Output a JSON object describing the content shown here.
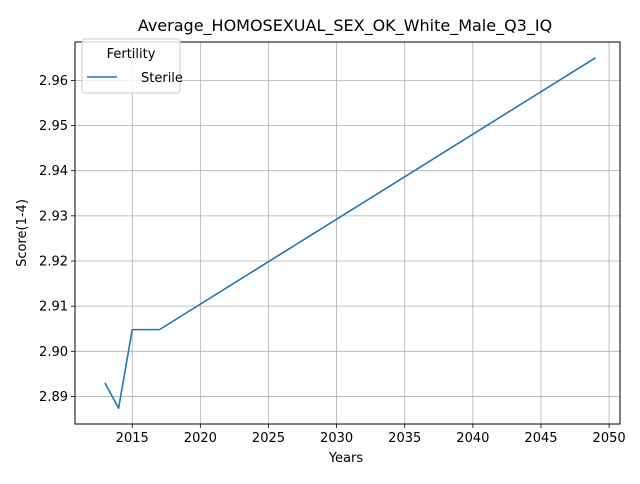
{
  "chart_data": {
    "type": "line",
    "title": "Average_HOMOSEXUAL_SEX_OK_White_Male_Q3_IQ",
    "xlabel": "Years",
    "ylabel": "Score(1-4)",
    "xlim": [
      2010.8,
      2050.8
    ],
    "ylim": [
      2.8839,
      2.9685
    ],
    "x_ticks": [
      2015,
      2020,
      2025,
      2030,
      2035,
      2040,
      2045,
      2050
    ],
    "y_ticks": [
      2.89,
      2.9,
      2.91,
      2.92,
      2.93,
      2.94,
      2.95,
      2.96
    ],
    "x_tick_labels": [
      "2015",
      "2020",
      "2025",
      "2030",
      "2035",
      "2040",
      "2045",
      "2050"
    ],
    "y_tick_labels": [
      "2.89",
      "2.90",
      "2.91",
      "2.92",
      "2.93",
      "2.94",
      "2.95",
      "2.96"
    ],
    "grid": true,
    "legend": {
      "title": "Fertility",
      "placement": "top-left"
    },
    "series": [
      {
        "name": "Sterile",
        "color": "#1f77b4",
        "x": [
          2013,
          2014,
          2015,
          2016,
          2017,
          2049
        ],
        "y": [
          2.893,
          2.8874,
          2.9048,
          2.9048,
          2.9048,
          2.965
        ]
      }
    ]
  }
}
